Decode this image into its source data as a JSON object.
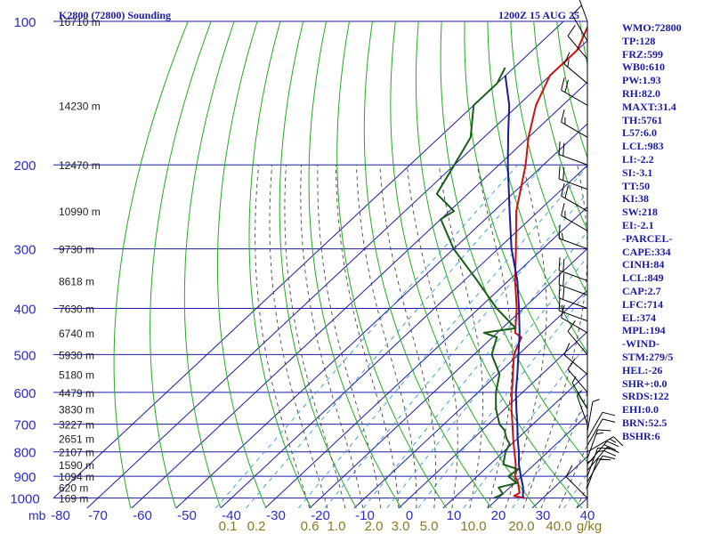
{
  "header": {
    "station": "K2800 (72800) Sounding",
    "time": "1200Z 15 AUG 25"
  },
  "indices": [
    "WMO:72800",
    "TP:128",
    "FRZ:599",
    "WB0:610",
    "PW:1.93",
    "RH:82.0",
    "MAXT:31.4",
    "TH:5761",
    "L57:6.0",
    "LCL:983",
    "LI:-2.2",
    "SI:-3.1",
    "TT:50",
    "KI:38",
    "SW:218",
    "EI:-2.1",
    "-PARCEL-",
    "CAPE:334",
    "CINH:84",
    "LCL:849",
    "CAP:2.7",
    "LFC:714",
    "EL:374",
    "MPL:194",
    "-WIND-",
    "STM:279/5",
    "HEL:-26",
    "SHR+:0.0",
    "SRDS:122",
    "EHI:0.0",
    "BRN:52.5",
    "BSHR:6"
  ],
  "colors": {
    "isobar": "#1a1aa6",
    "isotherm": "#1a1aa6",
    "dry_adiabat": "#22aa22",
    "moist_adiabat": "#444444",
    "mixing_ratio": "#3399dd",
    "temperature": "#cc1111",
    "dewpoint": "#1a5c1a",
    "parcel": "#1a1a9a",
    "wind": "#000000",
    "text": "#1a1aa6"
  },
  "chart_data": {
    "type": "line",
    "chart_kind": "skew-T log-P",
    "x_unit_label": "mb",
    "pressure_levels": [
      100,
      200,
      300,
      400,
      500,
      600,
      700,
      800,
      900,
      1000
    ],
    "temperature_ticks": [
      -80,
      -70,
      -60,
      -50,
      -40,
      -30,
      -20,
      -10,
      0,
      10,
      20,
      30,
      40
    ],
    "xlim": [
      -80,
      40
    ],
    "ylim": [
      1050,
      100
    ],
    "y_scale": "log",
    "grid": true,
    "height_labels": [
      {
        "p": 100,
        "h": "16710 m"
      },
      {
        "p": 150,
        "h": "14230 m"
      },
      {
        "p": 200,
        "h": "12470 m"
      },
      {
        "p": 250,
        "h": "10990 m"
      },
      {
        "p": 300,
        "h": "9730 m"
      },
      {
        "p": 350,
        "h": "8618 m"
      },
      {
        "p": 400,
        "h": "7630 m"
      },
      {
        "p": 450,
        "h": "6740 m"
      },
      {
        "p": 500,
        "h": "5930 m"
      },
      {
        "p": 550,
        "h": "5180 m"
      },
      {
        "p": 600,
        "h": "4479 m"
      },
      {
        "p": 650,
        "h": "3830 m"
      },
      {
        "p": 700,
        "h": "3227 m"
      },
      {
        "p": 750,
        "h": "2651 m"
      },
      {
        "p": 800,
        "h": "2107 m"
      },
      {
        "p": 850,
        "h": "1590 m"
      },
      {
        "p": 900,
        "h": "1094 m"
      },
      {
        "p": 950,
        "h": "620 m"
      },
      {
        "p": 1000,
        "h": "169 m"
      }
    ],
    "mixing_ratio_labels": [
      "0.1",
      "0.2",
      "0.6",
      "1.0",
      "2.0",
      "3.0",
      "5.0",
      "10.0",
      "20.0",
      "40.0",
      "g/kg"
    ],
    "mixing_ratio_values": [
      0.1,
      0.2,
      0.6,
      1.0,
      2.0,
      3.0,
      5.0,
      10.0,
      20.0,
      40.0
    ],
    "series": [
      {
        "key": "temperature",
        "points": [
          {
            "p": 1000,
            "t": 26.0
          },
          {
            "p": 990,
            "t": 23.0
          },
          {
            "p": 975,
            "t": 23.5
          },
          {
            "p": 950,
            "t": 22.0
          },
          {
            "p": 925,
            "t": 20.5
          },
          {
            "p": 900,
            "t": 18.5
          },
          {
            "p": 850,
            "t": 15.8
          },
          {
            "p": 800,
            "t": 12.5
          },
          {
            "p": 750,
            "t": 9.0
          },
          {
            "p": 700,
            "t": 5.4
          },
          {
            "p": 650,
            "t": 1.5
          },
          {
            "p": 600,
            "t": -2.4
          },
          {
            "p": 550,
            "t": -6.5
          },
          {
            "p": 500,
            "t": -11.0
          },
          {
            "p": 460,
            "t": -13.5
          },
          {
            "p": 450,
            "t": -16.0
          },
          {
            "p": 400,
            "t": -21.5
          },
          {
            "p": 350,
            "t": -28.5
          },
          {
            "p": 300,
            "t": -36.0
          },
          {
            "p": 250,
            "t": -45.0
          },
          {
            "p": 200,
            "t": -54.0
          },
          {
            "p": 175,
            "t": -60.0
          },
          {
            "p": 150,
            "t": -66.0
          },
          {
            "p": 130,
            "t": -70.0
          },
          {
            "p": 115,
            "t": -70.0
          },
          {
            "p": 100,
            "t": -74.0
          }
        ]
      },
      {
        "key": "dewpoint",
        "points": [
          {
            "p": 1000,
            "t": 19.0
          },
          {
            "p": 980,
            "t": 20.0
          },
          {
            "p": 950,
            "t": 17.5
          },
          {
            "p": 930,
            "t": 20.5
          },
          {
            "p": 900,
            "t": 17.0
          },
          {
            "p": 870,
            "t": 17.5
          },
          {
            "p": 850,
            "t": 13.0
          },
          {
            "p": 800,
            "t": 10.5
          },
          {
            "p": 770,
            "t": 9.5
          },
          {
            "p": 750,
            "t": 7.5
          },
          {
            "p": 720,
            "t": 5.0
          },
          {
            "p": 700,
            "t": 2.5
          },
          {
            "p": 650,
            "t": -2.0
          },
          {
            "p": 600,
            "t": -6.0
          },
          {
            "p": 550,
            "t": -9.5
          },
          {
            "p": 500,
            "t": -16.0
          },
          {
            "p": 460,
            "t": -19.0
          },
          {
            "p": 450,
            "t": -23.0
          },
          {
            "p": 440,
            "t": -17.0
          },
          {
            "p": 400,
            "t": -26.0
          },
          {
            "p": 350,
            "t": -37.0
          },
          {
            "p": 300,
            "t": -50.0
          },
          {
            "p": 260,
            "t": -60.0
          },
          {
            "p": 250,
            "t": -59.0
          },
          {
            "p": 230,
            "t": -67.0
          },
          {
            "p": 200,
            "t": -70.0
          },
          {
            "p": 175,
            "t": -73.0
          },
          {
            "p": 150,
            "t": -80.0
          },
          {
            "p": 135,
            "t": -80.0
          },
          {
            "p": 125,
            "t": -82.0
          }
        ]
      },
      {
        "key": "parcel",
        "points": [
          {
            "p": 1000,
            "t": 25.5
          },
          {
            "p": 950,
            "t": 23.0
          },
          {
            "p": 900,
            "t": 19.8
          },
          {
            "p": 850,
            "t": 16.5
          },
          {
            "p": 800,
            "t": 13.5
          },
          {
            "p": 750,
            "t": 10.0
          },
          {
            "p": 700,
            "t": 6.5
          },
          {
            "p": 650,
            "t": 2.6
          },
          {
            "p": 600,
            "t": -1.5
          },
          {
            "p": 550,
            "t": -5.5
          },
          {
            "p": 500,
            "t": -10.0
          },
          {
            "p": 450,
            "t": -15.0
          },
          {
            "p": 400,
            "t": -21.0
          },
          {
            "p": 350,
            "t": -28.0
          },
          {
            "p": 300,
            "t": -37.0
          },
          {
            "p": 250,
            "t": -46.5
          },
          {
            "p": 200,
            "t": -58.0
          },
          {
            "p": 170,
            "t": -66.0
          },
          {
            "p": 150,
            "t": -72.0
          },
          {
            "p": 130,
            "t": -80.0
          }
        ]
      }
    ],
    "wind_barbs": [
      {
        "p": 1000,
        "dir": 315,
        "spd": 10
      },
      {
        "p": 975,
        "dir": 0,
        "spd": 5
      },
      {
        "p": 950,
        "dir": 20,
        "spd": 10
      },
      {
        "p": 925,
        "dir": 30,
        "spd": 15
      },
      {
        "p": 900,
        "dir": 20,
        "spd": 15
      },
      {
        "p": 875,
        "dir": 40,
        "spd": 20
      },
      {
        "p": 850,
        "dir": 40,
        "spd": 20
      },
      {
        "p": 825,
        "dir": 20,
        "spd": 15
      },
      {
        "p": 800,
        "dir": 60,
        "spd": 15
      },
      {
        "p": 775,
        "dir": 30,
        "spd": 10
      },
      {
        "p": 750,
        "dir": 30,
        "spd": 10
      },
      {
        "p": 725,
        "dir": 10,
        "spd": 5
      },
      {
        "p": 700,
        "dir": 340,
        "spd": 5
      },
      {
        "p": 650,
        "dir": 330,
        "spd": 5
      },
      {
        "p": 600,
        "dir": 320,
        "spd": 10
      },
      {
        "p": 550,
        "dir": 310,
        "spd": 10
      },
      {
        "p": 500,
        "dir": 320,
        "spd": 10
      },
      {
        "p": 450,
        "dir": 300,
        "spd": 10
      },
      {
        "p": 425,
        "dir": 290,
        "spd": 15
      },
      {
        "p": 400,
        "dir": 290,
        "spd": 20
      },
      {
        "p": 375,
        "dir": 290,
        "spd": 20
      },
      {
        "p": 350,
        "dir": 290,
        "spd": 20
      },
      {
        "p": 300,
        "dir": 290,
        "spd": 15
      },
      {
        "p": 275,
        "dir": 300,
        "spd": 15
      },
      {
        "p": 250,
        "dir": 300,
        "spd": 20
      },
      {
        "p": 225,
        "dir": 290,
        "spd": 20
      },
      {
        "p": 200,
        "dir": 290,
        "spd": 20
      },
      {
        "p": 175,
        "dir": 300,
        "spd": 15
      },
      {
        "p": 150,
        "dir": 300,
        "spd": 20
      },
      {
        "p": 135,
        "dir": 310,
        "spd": 15
      },
      {
        "p": 120,
        "dir": 320,
        "spd": 10
      },
      {
        "p": 110,
        "dir": 330,
        "spd": 10
      },
      {
        "p": 100,
        "dir": 340,
        "spd": 5
      }
    ]
  }
}
